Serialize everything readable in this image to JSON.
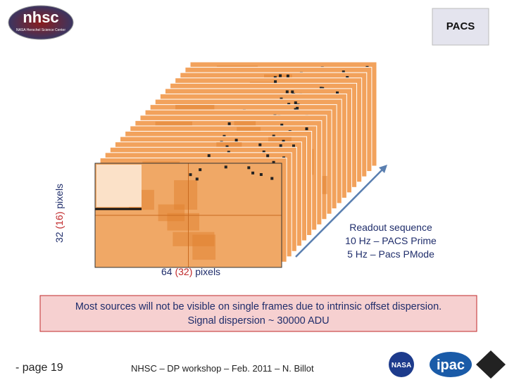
{
  "header": {
    "logo_left": {
      "title": "nhsc",
      "subtitle": "NASA Herschel Science Center"
    },
    "logo_right": "PACS"
  },
  "figure": {
    "y_label": [
      "32",
      "(16)",
      "pixels"
    ],
    "x_label": [
      "64",
      "(32)",
      "pixels"
    ],
    "readout": [
      "Readout sequence",
      "10 Hz – PACS Prime",
      "5 Hz – Pacs PMode"
    ]
  },
  "note": [
    "Most sources will not be visible on single frames due to intrinsic offset dispersion.",
    "Signal dispersion ~ 30000 ADU"
  ],
  "footer": {
    "page": "- page 19",
    "credit": "NHSC – DP workshop – Feb. 2011 – N. Billot",
    "logos": [
      "NASA",
      "ipac"
    ]
  }
}
